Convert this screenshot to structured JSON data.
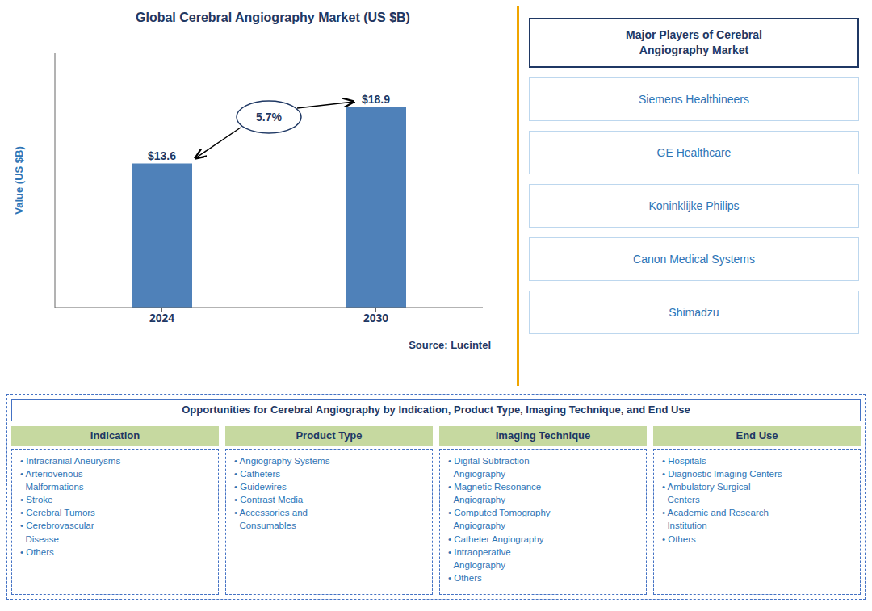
{
  "chart_data": {
    "type": "bar",
    "title": "Global Cerebral Angiography Market (US $B)",
    "ylabel": "Value (US $B)",
    "categories": [
      "2024",
      "2030"
    ],
    "values": [
      13.6,
      18.9
    ],
    "value_labels": [
      "$13.6",
      "$18.9"
    ],
    "data_labels": true,
    "color": "#4f81b9",
    "ylim": [
      0,
      24
    ],
    "tick_labels": "x",
    "grid": false,
    "annotations": [
      "5.7%",
      "Source: Lucintel"
    ]
  },
  "side_panel": {
    "title": "Major Players of Cerebral\nAngiography Market",
    "items": [
      "Siemens Healthineers",
      "GE Healthcare",
      "Koninklijke Philips",
      "Canon Medical Systems",
      "Shimadzu"
    ]
  },
  "table": {
    "title": "Opportunities for Cerebral Angiography by Indication, Product Type, Imaging Technique, and End Use",
    "columns": [
      {
        "header": "Indication",
        "items": [
          "• Intracranial Aneurysms",
          "• Arteriovenous\n  Malformations",
          "• Stroke",
          "• Cerebral Tumors",
          "• Cerebrovascular\n  Disease",
          "• Others"
        ]
      },
      {
        "header": "Product Type",
        "items": [
          "• Angiography Systems",
          "• Catheters",
          "• Guidewires",
          "• Contrast Media",
          "• Accessories and\n  Consumables"
        ]
      },
      {
        "header": "Imaging Technique",
        "items": [
          "• Digital Subtraction\n  Angiography",
          "• Magnetic Resonance\n  Angiography",
          "• Computed Tomography\n  Angiography",
          "• Catheter Angiography",
          "• Intraoperative\n  Angiography",
          "• Others"
        ]
      },
      {
        "header": "End Use",
        "items": [
          "• Hospitals",
          "• Diagnostic Imaging Centers",
          "• Ambulatory Surgical\n  Centers",
          "• Academic and Research\n  Institution",
          "• Others"
        ]
      }
    ]
  }
}
